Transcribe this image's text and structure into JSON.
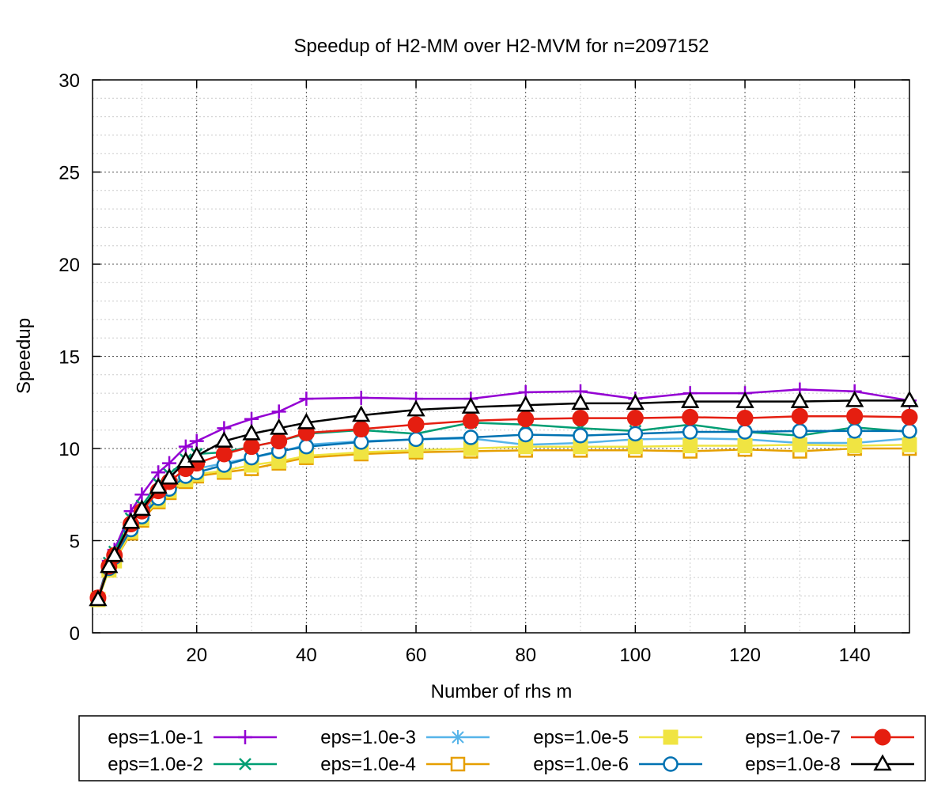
{
  "chart_data": {
    "type": "line",
    "title": "Speedup of H2-MM over H2-MVM for n=2097152",
    "xlabel": "Number of rhs m",
    "ylabel": "Speedup",
    "xlim": [
      1,
      150
    ],
    "ylim": [
      0,
      30
    ],
    "xticks": [
      20,
      40,
      60,
      80,
      100,
      120,
      140
    ],
    "yticks": [
      0,
      5,
      10,
      15,
      20,
      25,
      30
    ],
    "grid": true,
    "legend_position": "bottom",
    "x": [
      2,
      4,
      5,
      8,
      10,
      13,
      15,
      18,
      20,
      25,
      30,
      35,
      40,
      50,
      60,
      70,
      80,
      90,
      100,
      110,
      120,
      130,
      140,
      150
    ],
    "series": [
      {
        "name": "eps=1.0e-1",
        "color": "#9400d3",
        "marker": "plus",
        "values": [
          1.9,
          3.9,
          4.5,
          6.6,
          7.5,
          8.7,
          9.2,
          10.1,
          10.4,
          11.1,
          11.6,
          12.0,
          12.7,
          12.75,
          12.7,
          12.7,
          13.05,
          13.1,
          12.7,
          13.0,
          13.0,
          13.2,
          13.1,
          12.6
        ]
      },
      {
        "name": "eps=1.0e-2",
        "color": "#009e73",
        "marker": "x",
        "values": [
          1.9,
          3.8,
          4.4,
          6.2,
          6.9,
          8.1,
          8.6,
          9.4,
          9.7,
          9.8,
          10.1,
          10.4,
          10.8,
          11.0,
          10.8,
          11.4,
          11.3,
          11.1,
          10.95,
          11.3,
          10.9,
          10.7,
          11.15,
          10.9
        ]
      },
      {
        "name": "eps=1.0e-3",
        "color": "#56b4e9",
        "marker": "star",
        "values": [
          1.9,
          3.5,
          4.1,
          5.7,
          6.4,
          7.5,
          8.0,
          8.6,
          8.9,
          9.2,
          9.5,
          9.8,
          10.2,
          10.4,
          10.5,
          10.55,
          10.2,
          10.3,
          10.5,
          10.55,
          10.5,
          10.3,
          10.3,
          10.55
        ]
      },
      {
        "name": "eps=1.0e-4",
        "color": "#e69f00",
        "marker": "open-square",
        "values": [
          1.8,
          3.4,
          3.9,
          5.4,
          6.1,
          7.1,
          7.6,
          8.2,
          8.5,
          8.7,
          8.9,
          9.2,
          9.5,
          9.7,
          9.8,
          9.85,
          9.9,
          9.9,
          9.9,
          9.85,
          9.95,
          9.85,
          10.0,
          10.0
        ]
      },
      {
        "name": "eps=1.0e-5",
        "color": "#f0e442",
        "marker": "filled-square",
        "values": [
          1.8,
          3.4,
          3.9,
          5.5,
          6.2,
          7.2,
          7.7,
          8.3,
          8.6,
          8.8,
          9.1,
          9.3,
          9.6,
          9.8,
          9.9,
          10.0,
          10.1,
          10.1,
          10.1,
          10.15,
          10.15,
          10.2,
          10.15,
          10.2
        ]
      },
      {
        "name": "eps=1.0e-6",
        "color": "#0072b2",
        "marker": "open-circle",
        "values": [
          1.9,
          3.5,
          4.1,
          5.6,
          6.3,
          7.3,
          7.8,
          8.5,
          8.7,
          9.1,
          9.5,
          9.85,
          10.1,
          10.35,
          10.5,
          10.6,
          10.75,
          10.7,
          10.8,
          10.9,
          10.9,
          10.95,
          10.95,
          10.95
        ]
      },
      {
        "name": "eps=1.0e-7",
        "color": "#e51e10",
        "marker": "filled-circle",
        "values": [
          1.9,
          3.6,
          4.2,
          5.9,
          6.6,
          7.7,
          8.2,
          8.9,
          9.2,
          9.7,
          10.1,
          10.4,
          10.85,
          11.05,
          11.3,
          11.5,
          11.6,
          11.65,
          11.65,
          11.7,
          11.65,
          11.75,
          11.75,
          11.7
        ]
      },
      {
        "name": "eps=1.0e-8",
        "color": "#000000",
        "marker": "open-triangle",
        "values": [
          1.8,
          3.6,
          4.2,
          6.0,
          6.7,
          7.9,
          8.4,
          9.3,
          9.6,
          10.4,
          10.8,
          11.1,
          11.4,
          11.8,
          12.1,
          12.25,
          12.35,
          12.45,
          12.45,
          12.55,
          12.55,
          12.55,
          12.6,
          12.6
        ]
      }
    ]
  }
}
